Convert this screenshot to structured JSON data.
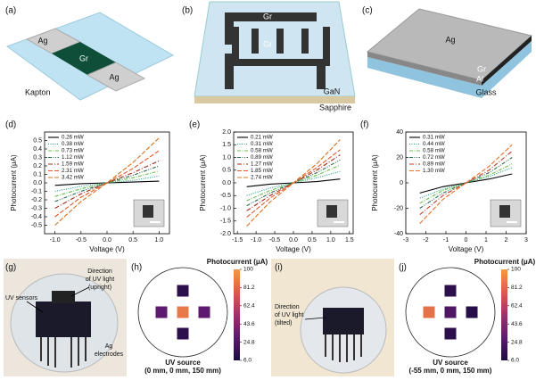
{
  "illustrations": [
    {
      "label": "(a)",
      "texts": [
        "Ag",
        "Gr",
        "Ag",
        "Kapton"
      ]
    },
    {
      "label": "(b)",
      "texts": [
        "Gr",
        "Gr",
        "GaN",
        "Sapphire"
      ]
    },
    {
      "label": "(c)",
      "texts": [
        "Ag",
        "Gr",
        "Al",
        "Glass"
      ]
    }
  ],
  "photos": [
    {
      "label": "(g)",
      "texts": [
        "UV sensors",
        "Direction",
        "of UV light",
        "(upright)",
        "Ag",
        "electrodes"
      ]
    },
    {
      "label": "(i)",
      "texts": [
        "Direction",
        "of UV light",
        "(tilted)"
      ]
    }
  ],
  "chart_data": [
    {
      "type": "line",
      "label": "(d)",
      "xlabel": "Voltage (V)",
      "ylabel": "Photocurrent (μA)",
      "x": [
        -1,
        -0.5,
        0,
        0.5,
        1
      ],
      "xlim": [
        -1.2,
        1.2
      ],
      "ylim": [
        -0.6,
        0.6
      ],
      "xticks": [
        {
          "value": -1,
          "label": "-1.0"
        },
        -0.5,
        {
          "value": 0,
          "label": "0.0"
        },
        0.5,
        {
          "value": 1,
          "label": "1.0"
        }
      ],
      "yticks": [
        -0.5,
        -0.4,
        -0.3,
        -0.2,
        -0.1,
        {
          "value": 0,
          "label": "0.0"
        },
        0.1,
        0.2,
        0.3,
        0.4,
        0.5
      ],
      "legend": "upper left",
      "series": [
        {
          "name": "0.26 mW",
          "color": "#000000",
          "dash": "none",
          "values": [
            -0.03,
            -0.01,
            0,
            0.01,
            0.02
          ]
        },
        {
          "name": "0.38 mW",
          "color": "#1f9e89",
          "dash": "1,1.5",
          "values": [
            -0.1,
            -0.04,
            0,
            0.03,
            0.08
          ]
        },
        {
          "name": "0.73 mW",
          "color": "#6abf4b",
          "dash": "4,1.5,1,1.5",
          "values": [
            -0.16,
            -0.07,
            0,
            0.06,
            0.14
          ]
        },
        {
          "name": "1.12 mW",
          "color": "#2e6b4f",
          "dash": "4,1.5,1,1.5,1,1.5",
          "values": [
            -0.22,
            -0.1,
            0,
            0.09,
            0.2
          ]
        },
        {
          "name": "1.59 mW",
          "color": "#9e2a1b",
          "dash": "5,2,1,2",
          "values": [
            -0.3,
            -0.13,
            0,
            0.12,
            0.26
          ]
        },
        {
          "name": "2.31 mW",
          "color": "#e4572e",
          "dash": "5,2",
          "values": [
            -0.4,
            -0.17,
            0,
            0.17,
            0.38
          ]
        },
        {
          "name": "3.42 mW",
          "color": "#d9701a",
          "dash": "5,2",
          "values": [
            -0.5,
            -0.22,
            0,
            0.24,
            0.53
          ]
        }
      ]
    },
    {
      "type": "line",
      "label": "(e)",
      "xlabel": "Voltage (V)",
      "ylabel": "Photocurrent (μA)",
      "x": [
        -1.25,
        -0.625,
        0,
        0.625,
        1.25
      ],
      "xlim": [
        -1.6,
        1.6
      ],
      "ylim": [
        -2,
        2
      ],
      "xticks": [
        -1.5,
        {
          "value": -1,
          "label": "-1.0"
        },
        -0.5,
        {
          "value": 0,
          "label": "0.0"
        },
        0.5,
        {
          "value": 1,
          "label": "1.0"
        },
        1.5
      ],
      "yticks": [
        {
          "value": -2,
          "label": "-2.0"
        },
        -1.5,
        {
          "value": -1,
          "label": "-1.0"
        },
        -0.5,
        {
          "value": 0,
          "label": "0.0"
        },
        0.5,
        {
          "value": 1,
          "label": "1.0"
        },
        1.5,
        {
          "value": 2,
          "label": "2.0"
        }
      ],
      "legend": "upper left",
      "series": [
        {
          "name": "0.21 mW",
          "color": "#000000",
          "dash": "none",
          "values": [
            -0.15,
            -0.05,
            0,
            0.05,
            0.15
          ]
        },
        {
          "name": "0.31 mW",
          "color": "#1f9e89",
          "dash": "1,1.5",
          "values": [
            -0.5,
            -0.2,
            0,
            0.2,
            0.45
          ]
        },
        {
          "name": "0.58 mW",
          "color": "#6abf4b",
          "dash": "4,1.5,1,1.5",
          "values": [
            -0.7,
            -0.3,
            0,
            0.3,
            0.7
          ]
        },
        {
          "name": "0.89 mW",
          "color": "#2e6b4f",
          "dash": "4,1.5,1,1.5,1,1.5",
          "values": [
            -0.9,
            -0.4,
            0,
            0.4,
            0.9
          ]
        },
        {
          "name": "1.27 mW",
          "color": "#9e2a1b",
          "dash": "5,2,1,2",
          "values": [
            -1.1,
            -0.5,
            0,
            0.5,
            1.1
          ]
        },
        {
          "name": "1.85 mW",
          "color": "#e4572e",
          "dash": "5,2",
          "values": [
            -1.35,
            -0.6,
            0,
            0.6,
            1.3
          ]
        },
        {
          "name": "2.74 mW",
          "color": "#d9701a",
          "dash": "5,2",
          "values": [
            -1.7,
            -0.75,
            0,
            0.75,
            1.7
          ]
        }
      ]
    },
    {
      "type": "line",
      "label": "(f)",
      "xlabel": "Voltage (V)",
      "ylabel": "Photocurrent (μA)",
      "x": [
        -2.3,
        -1.15,
        0,
        1.15,
        2.3
      ],
      "xlim": [
        -3,
        3
      ],
      "ylim": [
        -40,
        40
      ],
      "xticks": [
        -3,
        -2,
        -1,
        0,
        1,
        2,
        3
      ],
      "yticks": [
        -40,
        -20,
        0,
        20,
        40
      ],
      "legend": "upper left",
      "series": [
        {
          "name": "0.31 mW",
          "color": "#000000",
          "dash": "none",
          "values": [
            -8,
            -3,
            0,
            3,
            7
          ]
        },
        {
          "name": "0.44 mW",
          "color": "#1f9e89",
          "dash": "1,1.5",
          "values": [
            -12,
            -5,
            0,
            5,
            12
          ]
        },
        {
          "name": "0.58 mW",
          "color": "#6abf4b",
          "dash": "4,1.5,1,1.5",
          "values": [
            -16,
            -6,
            0,
            6,
            15
          ]
        },
        {
          "name": "0.72 mW",
          "color": "#2e6b4f",
          "dash": "4,1.5,1,1.5,1,1.5",
          "values": [
            -20,
            -8,
            0,
            8,
            20
          ]
        },
        {
          "name": "0.89 mW",
          "color": "#c0392b",
          "dash": "5,2,1,2",
          "values": [
            -25,
            -10,
            0,
            10,
            25
          ]
        },
        {
          "name": "1.30 mW",
          "color": "#e8702a",
          "dash": "5,2",
          "values": [
            -32,
            -13,
            0,
            13,
            30
          ]
        }
      ]
    },
    {
      "type": "heatmap",
      "label": "(h)",
      "colorbar_label": "Photocurrent (μA)",
      "xlabel": "UV source",
      "subtitle": "(0 mm, 0 mm, 150 mm)",
      "values": [
        [
          null,
          12,
          null
        ],
        [
          30,
          88,
          30
        ],
        [
          null,
          12,
          null
        ]
      ],
      "clim": [
        6,
        100
      ],
      "cticks": [
        {
          "value": 6,
          "label": "6.0"
        },
        24.8,
        43.6,
        62.4,
        81.2,
        100
      ],
      "colormap": [
        "#1b0c41",
        "#5c1a6e",
        "#a0306c",
        "#dd5a4a",
        "#f39a45"
      ]
    },
    {
      "type": "heatmap",
      "label": "(j)",
      "colorbar_label": "Photocurrent (μA)",
      "xlabel": "UV source",
      "subtitle": "(-55 mm, 0 mm, 150 mm)",
      "values": [
        [
          null,
          12,
          null
        ],
        [
          85,
          25,
          10
        ],
        [
          null,
          12,
          null
        ]
      ],
      "clim": [
        6,
        100
      ],
      "cticks": [
        {
          "value": 6,
          "label": "6.0"
        },
        24.8,
        43.6,
        62.4,
        81.2,
        100
      ],
      "colormap": [
        "#1b0c41",
        "#5c1a6e",
        "#a0306c",
        "#dd5a4a",
        "#f39a45"
      ]
    }
  ]
}
